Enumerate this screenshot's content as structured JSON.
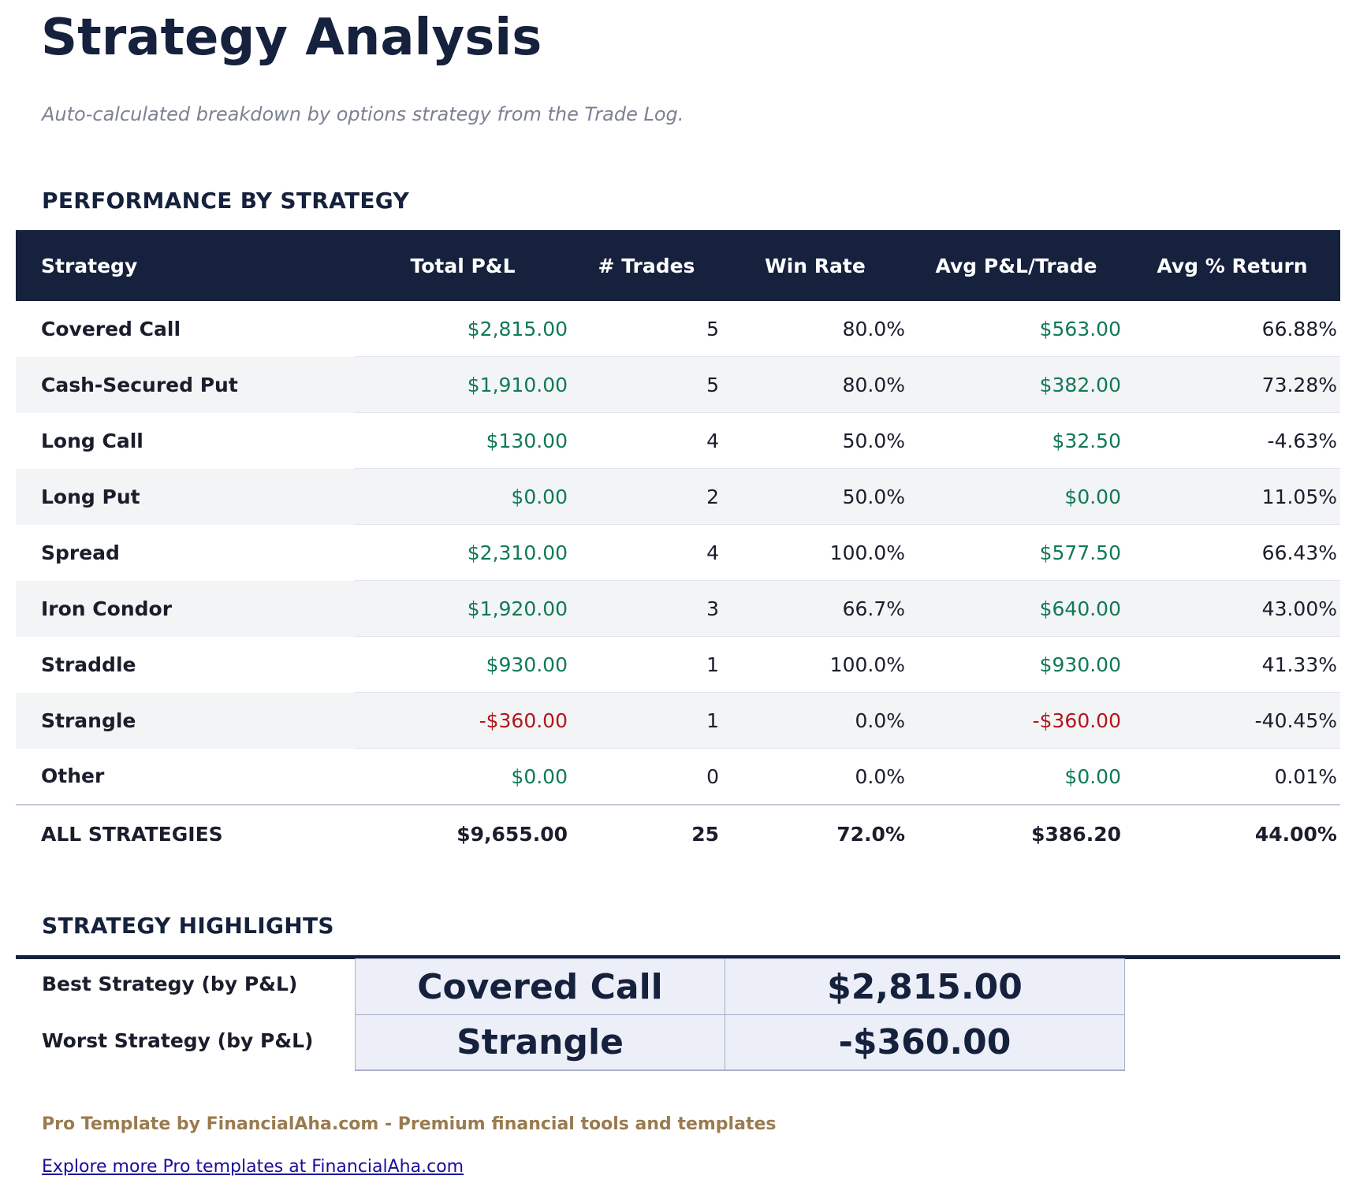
{
  "title": "Strategy Analysis",
  "subtitle": "Auto-calculated breakdown by options strategy from the Trade Log.",
  "performance": {
    "heading": "PERFORMANCE BY STRATEGY",
    "columns": [
      "Strategy",
      "Total P&L",
      "# Trades",
      "Win Rate",
      "Avg P&L/Trade",
      "Avg % Return"
    ],
    "rows": [
      {
        "strategy": "Covered Call",
        "total_pnl": "$2,815.00",
        "trades": "5",
        "win_rate": "80.0%",
        "avg_pnl": "$563.00",
        "avg_return": "66.88%",
        "sign": "pos"
      },
      {
        "strategy": "Cash-Secured Put",
        "total_pnl": "$1,910.00",
        "trades": "5",
        "win_rate": "80.0%",
        "avg_pnl": "$382.00",
        "avg_return": "73.28%",
        "sign": "pos"
      },
      {
        "strategy": "Long Call",
        "total_pnl": "$130.00",
        "trades": "4",
        "win_rate": "50.0%",
        "avg_pnl": "$32.50",
        "avg_return": "-4.63%",
        "sign": "pos"
      },
      {
        "strategy": "Long Put",
        "total_pnl": "$0.00",
        "trades": "2",
        "win_rate": "50.0%",
        "avg_pnl": "$0.00",
        "avg_return": "11.05%",
        "sign": "pos"
      },
      {
        "strategy": "Spread",
        "total_pnl": "$2,310.00",
        "trades": "4",
        "win_rate": "100.0%",
        "avg_pnl": "$577.50",
        "avg_return": "66.43%",
        "sign": "pos"
      },
      {
        "strategy": "Iron Condor",
        "total_pnl": "$1,920.00",
        "trades": "3",
        "win_rate": "66.7%",
        "avg_pnl": "$640.00",
        "avg_return": "43.00%",
        "sign": "pos"
      },
      {
        "strategy": "Straddle",
        "total_pnl": "$930.00",
        "trades": "1",
        "win_rate": "100.0%",
        "avg_pnl": "$930.00",
        "avg_return": "41.33%",
        "sign": "pos"
      },
      {
        "strategy": "Strangle",
        "total_pnl": "-$360.00",
        "trades": "1",
        "win_rate": "0.0%",
        "avg_pnl": "-$360.00",
        "avg_return": "-40.45%",
        "sign": "neg"
      },
      {
        "strategy": "Other",
        "total_pnl": "$0.00",
        "trades": "0",
        "win_rate": "0.0%",
        "avg_pnl": "$0.00",
        "avg_return": "0.01%",
        "sign": "pos"
      }
    ],
    "total": {
      "strategy": "ALL STRATEGIES",
      "total_pnl": "$9,655.00",
      "trades": "25",
      "win_rate": "72.0%",
      "avg_pnl": "$386.20",
      "avg_return": "44.00%"
    },
    "colors": {
      "header_bg": "#15213d",
      "positive": "#0f7a55",
      "negative": "#b3161c",
      "stripe": "#f3f4f6"
    }
  },
  "highlights": {
    "heading": "STRATEGY HIGHLIGHTS",
    "best": {
      "label": "Best Strategy (by P&L)",
      "strategy": "Covered Call",
      "value": "$2,815.00"
    },
    "worst": {
      "label": "Worst Strategy (by P&L)",
      "strategy": "Strangle",
      "value": "-$360.00"
    }
  },
  "footer": {
    "credit": "Pro Template by FinancialAha.com - Premium financial tools and templates",
    "link": "Explore more Pro templates at FinancialAha.com"
  }
}
